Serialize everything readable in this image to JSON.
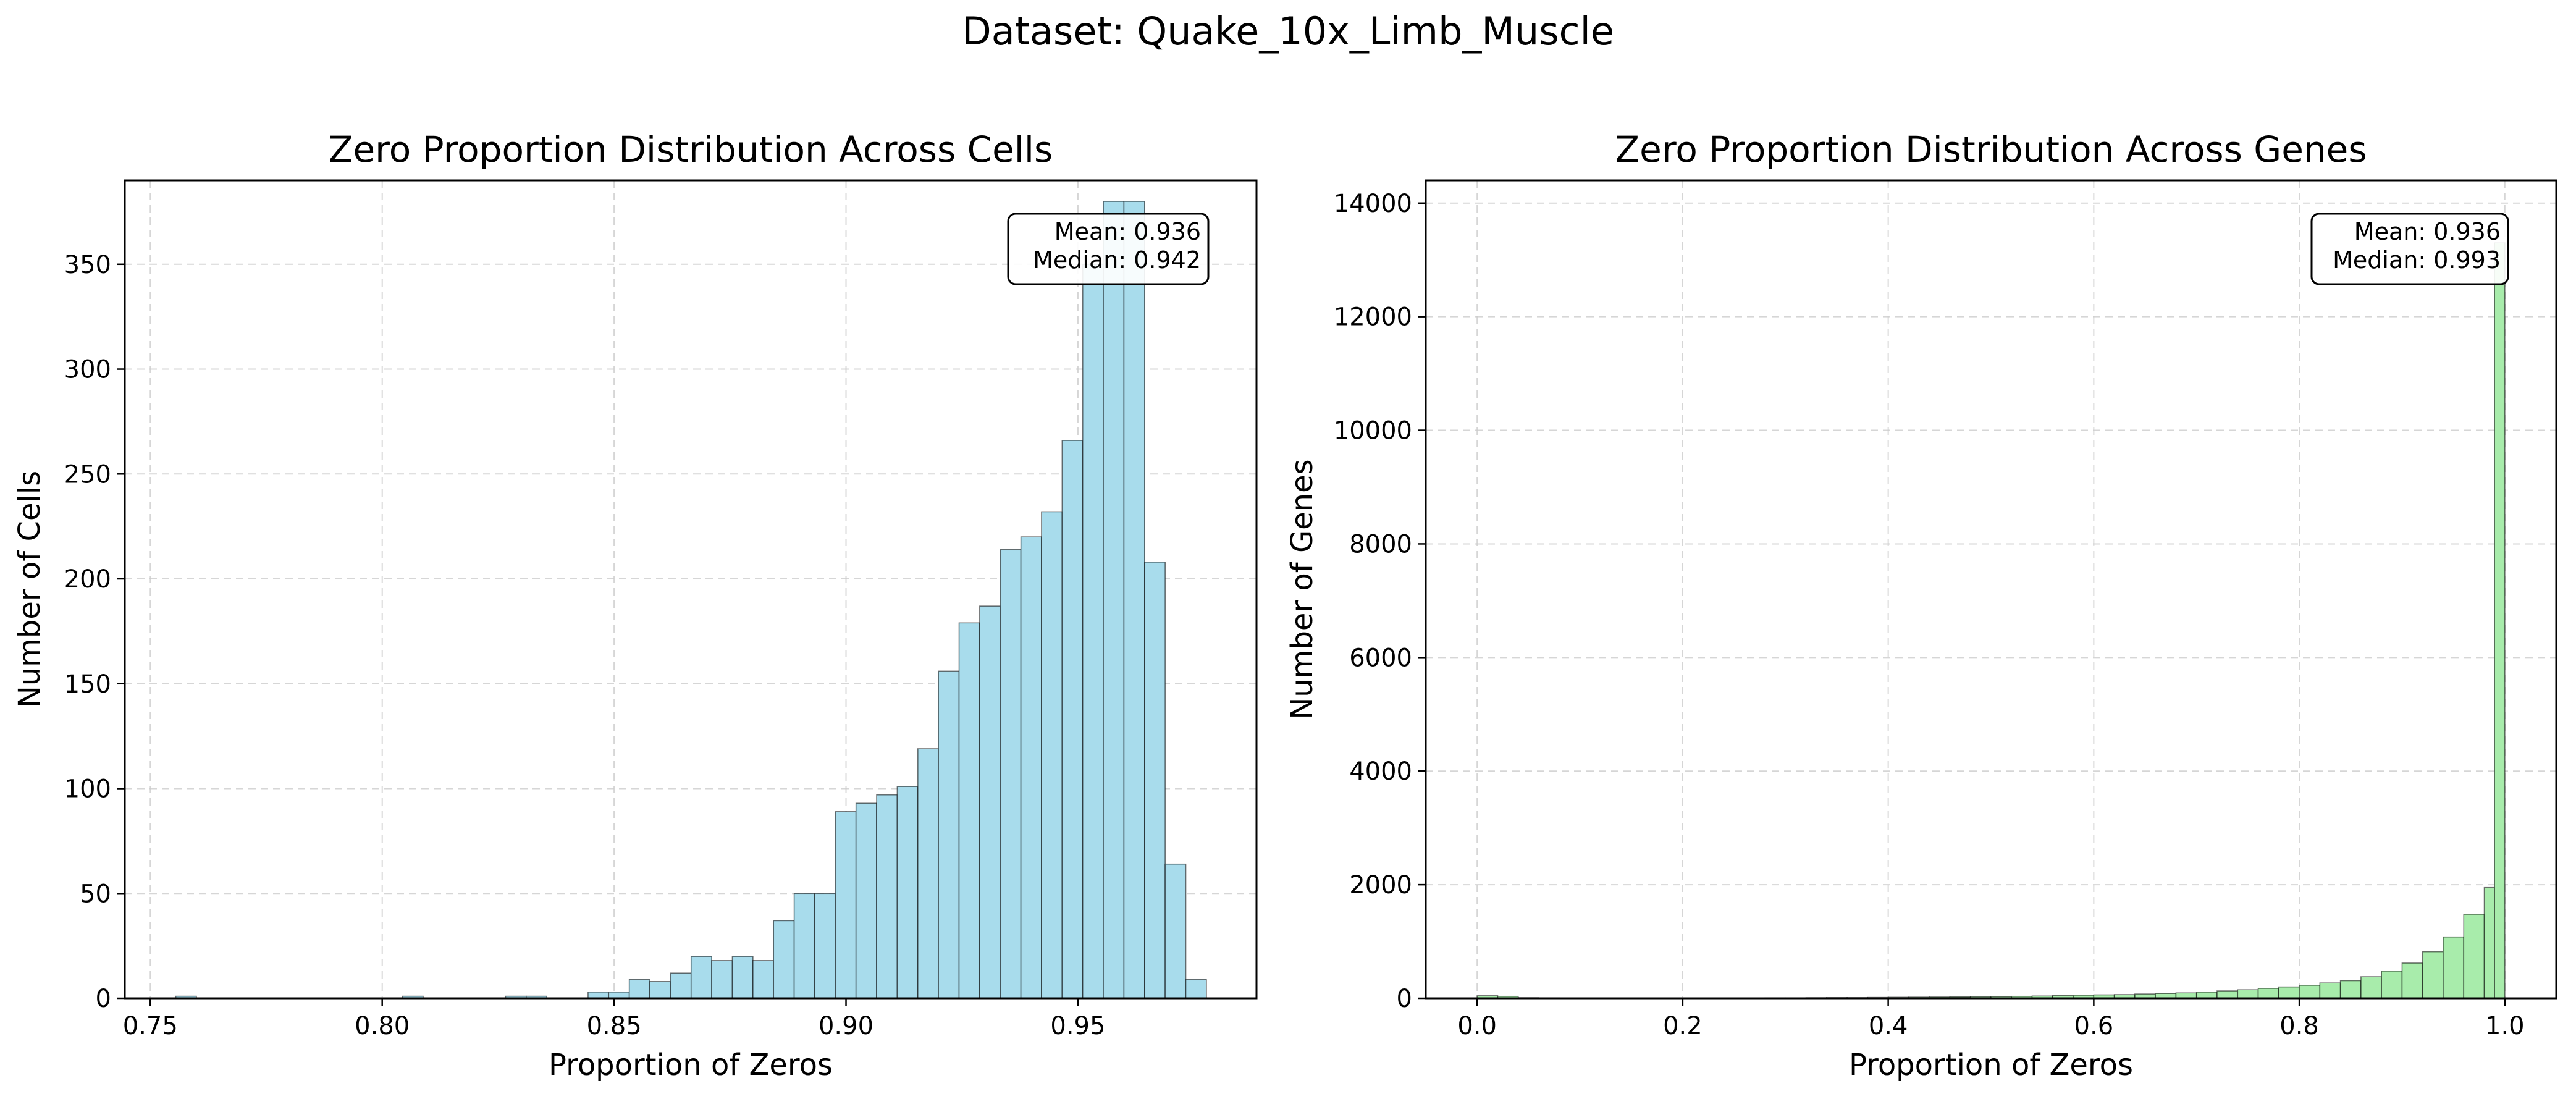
{
  "figure": {
    "suptitle": "Dataset: Quake_10x_Limb_Muscle"
  },
  "chart_data": [
    {
      "type": "bar",
      "title": "Zero Proportion Distribution Across Cells",
      "xlabel": "Proportion of Zeros",
      "ylabel": "Number of Cells",
      "xlim": [
        0.7445,
        0.9885
      ],
      "ylim": [
        0,
        390
      ],
      "xticks": [
        0.75,
        0.8,
        0.85,
        0.9,
        0.95
      ],
      "xtick_labels": [
        "0.75",
        "0.80",
        "0.85",
        "0.90",
        "0.95"
      ],
      "yticks": [
        0,
        50,
        100,
        150,
        200,
        250,
        300,
        350
      ],
      "ytick_labels": [
        "0",
        "50",
        "100",
        "150",
        "200",
        "250",
        "300",
        "350"
      ],
      "bin_start": 0.7555,
      "bin_width": 0.004444,
      "values": [
        1,
        0,
        0,
        0,
        0,
        0,
        0,
        0,
        0,
        0,
        0,
        1,
        0,
        0,
        0,
        0,
        1,
        1,
        0,
        0,
        3,
        3,
        9,
        8,
        12,
        20,
        18,
        20,
        18,
        37,
        50,
        50,
        89,
        93,
        97,
        101,
        119,
        156,
        179,
        187,
        214,
        220,
        232,
        266,
        350,
        380,
        380,
        208,
        64,
        9
      ],
      "bar_color": "#a8dcec",
      "stats": {
        "mean_label": "Mean: 0.936",
        "median_label": "Median: 0.942"
      },
      "grid": true,
      "stats_box_placement": "top-right"
    },
    {
      "type": "bar",
      "title": "Zero Proportion Distribution Across Genes",
      "xlabel": "Proportion of Zeros",
      "ylabel": "Number of Genes",
      "xlim": [
        -0.05,
        1.05
      ],
      "ylim": [
        0,
        14400
      ],
      "xticks": [
        0.0,
        0.2,
        0.4,
        0.6,
        0.8,
        1.0
      ],
      "xtick_labels": [
        "0.0",
        "0.2",
        "0.4",
        "0.6",
        "0.8",
        "1.0"
      ],
      "yticks": [
        0,
        2000,
        4000,
        6000,
        8000,
        10000,
        12000,
        14000
      ],
      "ytick_labels": [
        "0",
        "2000",
        "4000",
        "6000",
        "8000",
        "10000",
        "12000",
        "14000"
      ],
      "bin_start": 0.0,
      "bin_width": 0.02,
      "values": [
        45,
        35,
        10,
        8,
        5,
        5,
        5,
        4,
        5,
        6,
        5,
        6,
        5,
        6,
        8,
        8,
        10,
        12,
        12,
        15,
        18,
        20,
        22,
        25,
        28,
        30,
        35,
        40,
        50,
        55,
        60,
        65,
        75,
        85,
        95,
        110,
        130,
        150,
        175,
        200,
        230,
        270,
        310,
        380,
        480,
        620,
        820,
        1080,
        1480,
        1950
      ],
      "last_bin": {
        "x": 0.99,
        "width": 0.01,
        "value": 13300
      },
      "bar_color": "#a8ecab",
      "stats": {
        "mean_label": "Mean: 0.936",
        "median_label": "Median: 0.993"
      },
      "grid": true,
      "stats_box_placement": "top-right"
    }
  ]
}
